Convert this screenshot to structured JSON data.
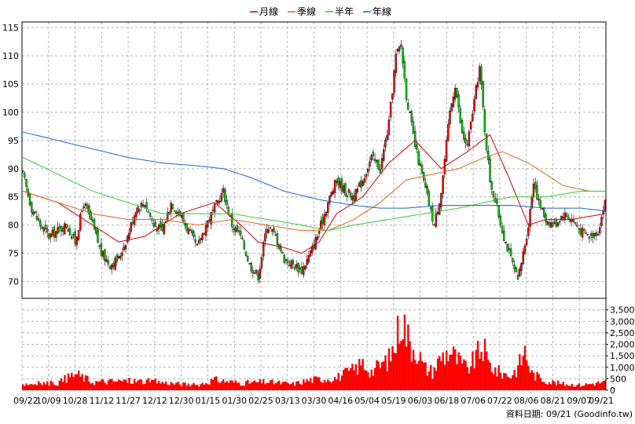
{
  "chart_data": [
    {
      "type": "candlestick",
      "legend": [
        {
          "name": "月線",
          "color": "#cc0000"
        },
        {
          "name": "季線",
          "color": "#d2691e"
        },
        {
          "name": "半年",
          "color": "#33cc33"
        },
        {
          "name": "年線",
          "color": "#1e64c8"
        }
      ],
      "legend_position": "top-center",
      "ylim": [
        67,
        116
      ],
      "yticks": [
        70,
        75,
        80,
        85,
        90,
        95,
        100,
        105,
        110,
        115
      ],
      "y_axis_side": "left",
      "grid": true,
      "x_labels": [
        "09/22",
        "10/09",
        "10/28",
        "11/12",
        "11/27",
        "12/12",
        "12/30",
        "01/15",
        "01/30",
        "02/25",
        "03/13",
        "03/30",
        "04/16",
        "05/04",
        "05/19",
        "06/03",
        "06/18",
        "07/06",
        "07/22",
        "08/06",
        "08/21",
        "09/07",
        "09/21"
      ],
      "close_anchors": [
        [
          0,
          89
        ],
        [
          5,
          83
        ],
        [
          10,
          80
        ],
        [
          15,
          78
        ],
        [
          20,
          79
        ],
        [
          25,
          80
        ],
        [
          30,
          77
        ],
        [
          35,
          84
        ],
        [
          40,
          80
        ],
        [
          45,
          75
        ],
        [
          50,
          73
        ],
        [
          55,
          74
        ],
        [
          60,
          78
        ],
        [
          65,
          83
        ],
        [
          70,
          84
        ],
        [
          75,
          80
        ],
        [
          80,
          79
        ],
        [
          85,
          84
        ],
        [
          90,
          82
        ],
        [
          95,
          79
        ],
        [
          100,
          76
        ],
        [
          105,
          80
        ],
        [
          110,
          83
        ],
        [
          115,
          86
        ],
        [
          120,
          80
        ],
        [
          125,
          78
        ],
        [
          130,
          73
        ],
        [
          135,
          71
        ],
        [
          140,
          80
        ],
        [
          145,
          78
        ],
        [
          150,
          74
        ],
        [
          155,
          73
        ],
        [
          160,
          72
        ],
        [
          165,
          75
        ],
        [
          170,
          79
        ],
        [
          175,
          84
        ],
        [
          180,
          88
        ],
        [
          185,
          86
        ],
        [
          190,
          85
        ],
        [
          195,
          88
        ],
        [
          200,
          92
        ],
        [
          205,
          90
        ],
        [
          210,
          98
        ],
        [
          214,
          110
        ],
        [
          217,
          112
        ],
        [
          220,
          103
        ],
        [
          225,
          94
        ],
        [
          228,
          90
        ],
        [
          232,
          85
        ],
        [
          236,
          80
        ],
        [
          240,
          86
        ],
        [
          245,
          100
        ],
        [
          248,
          105
        ],
        [
          252,
          96
        ],
        [
          255,
          94
        ],
        [
          258,
          100
        ],
        [
          262,
          108
        ],
        [
          265,
          97
        ],
        [
          268,
          88
        ],
        [
          272,
          83
        ],
        [
          276,
          78
        ],
        [
          280,
          74
        ],
        [
          284,
          70
        ],
        [
          287,
          75
        ],
        [
          290,
          80
        ],
        [
          293,
          88
        ],
        [
          296,
          84
        ],
        [
          300,
          81
        ],
        [
          305,
          80
        ],
        [
          310,
          82
        ],
        [
          315,
          81
        ],
        [
          320,
          79
        ],
        [
          325,
          78
        ],
        [
          330,
          79
        ],
        [
          334,
          84
        ]
      ],
      "ma_anchors": {
        "月線": [
          [
            0,
            86
          ],
          [
            20,
            84
          ],
          [
            40,
            80
          ],
          [
            55,
            77
          ],
          [
            70,
            78
          ],
          [
            90,
            82
          ],
          [
            110,
            84
          ],
          [
            125,
            80
          ],
          [
            135,
            77
          ],
          [
            150,
            76
          ],
          [
            160,
            75
          ],
          [
            170,
            77
          ],
          [
            180,
            82
          ],
          [
            195,
            85
          ],
          [
            210,
            91
          ],
          [
            225,
            95
          ],
          [
            240,
            90
          ],
          [
            255,
            93
          ],
          [
            268,
            96
          ],
          [
            278,
            89
          ],
          [
            290,
            80
          ],
          [
            300,
            81
          ],
          [
            315,
            81
          ],
          [
            334,
            82
          ]
        ],
        "季線": [
          [
            0,
            86
          ],
          [
            20,
            84
          ],
          [
            40,
            82
          ],
          [
            60,
            81
          ],
          [
            80,
            81
          ],
          [
            100,
            80
          ],
          [
            120,
            81
          ],
          [
            140,
            80
          ],
          [
            160,
            79
          ],
          [
            175,
            79
          ],
          [
            190,
            81
          ],
          [
            205,
            84
          ],
          [
            220,
            88
          ],
          [
            235,
            89
          ],
          [
            250,
            90
          ],
          [
            265,
            92
          ],
          [
            275,
            93
          ],
          [
            290,
            91
          ],
          [
            310,
            87
          ],
          [
            325,
            86
          ],
          [
            334,
            86
          ]
        ],
        "半年": [
          [
            0,
            92
          ],
          [
            20,
            89
          ],
          [
            40,
            86
          ],
          [
            60,
            84
          ],
          [
            80,
            82
          ],
          [
            100,
            82
          ],
          [
            120,
            82
          ],
          [
            140,
            81
          ],
          [
            160,
            80
          ],
          [
            175,
            79
          ],
          [
            190,
            80
          ],
          [
            210,
            81
          ],
          [
            230,
            82
          ],
          [
            250,
            83
          ],
          [
            265,
            84
          ],
          [
            280,
            85
          ],
          [
            300,
            85
          ],
          [
            320,
            86
          ],
          [
            334,
            86
          ]
        ],
        "年線": [
          [
            0,
            96.5
          ],
          [
            20,
            95
          ],
          [
            40,
            93.5
          ],
          [
            60,
            92
          ],
          [
            80,
            91
          ],
          [
            100,
            90.5
          ],
          [
            115,
            90
          ],
          [
            130,
            88.5
          ],
          [
            150,
            86
          ],
          [
            170,
            84.5
          ],
          [
            190,
            83.5
          ],
          [
            205,
            83
          ],
          [
            220,
            83
          ],
          [
            240,
            83.5
          ],
          [
            260,
            83.5
          ],
          [
            280,
            83.5
          ],
          [
            300,
            83
          ],
          [
            320,
            83
          ],
          [
            334,
            82.5
          ]
        ]
      }
    },
    {
      "type": "bar",
      "ylim": [
        0,
        4000
      ],
      "yticks": [
        0,
        500,
        1000,
        1500,
        2000,
        2500,
        3000,
        3500
      ],
      "ytick_labels": [
        "0",
        "500",
        "1,000",
        "1,500",
        "2,000",
        "2,500",
        "3,000",
        "3,500"
      ],
      "y_axis_side": "right",
      "bar_color": "#ff0000",
      "volume_anchors": [
        [
          0,
          300
        ],
        [
          20,
          350
        ],
        [
          30,
          800
        ],
        [
          40,
          400
        ],
        [
          60,
          450
        ],
        [
          75,
          420
        ],
        [
          90,
          300
        ],
        [
          100,
          250
        ],
        [
          110,
          500
        ],
        [
          125,
          350
        ],
        [
          140,
          400
        ],
        [
          155,
          300
        ],
        [
          165,
          500
        ],
        [
          180,
          600
        ],
        [
          190,
          1000
        ],
        [
          195,
          1300
        ],
        [
          200,
          900
        ],
        [
          205,
          1200
        ],
        [
          210,
          1500
        ],
        [
          214,
          2300
        ],
        [
          217,
          3700
        ],
        [
          219,
          3100
        ],
        [
          222,
          2200
        ],
        [
          226,
          2000
        ],
        [
          230,
          1100
        ],
        [
          235,
          900
        ],
        [
          240,
          1600
        ],
        [
          245,
          1900
        ],
        [
          250,
          1400
        ],
        [
          255,
          1000
        ],
        [
          260,
          1600
        ],
        [
          264,
          2100
        ],
        [
          267,
          1300
        ],
        [
          272,
          900
        ],
        [
          276,
          800
        ],
        [
          280,
          700
        ],
        [
          284,
          1100
        ],
        [
          288,
          1900
        ],
        [
          292,
          800
        ],
        [
          300,
          450
        ],
        [
          310,
          300
        ],
        [
          320,
          250
        ],
        [
          334,
          400
        ]
      ]
    }
  ],
  "footer": "資料日期: 09/21 (Goodinfo.tw)"
}
